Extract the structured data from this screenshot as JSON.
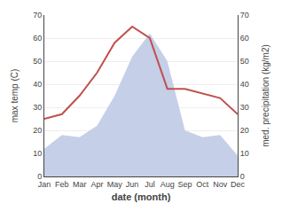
{
  "chart_data": {
    "type": "line",
    "xlabel": "date (month)",
    "ylabel": "max temp (C)",
    "y2label": "med. precipitation (kg/m2)",
    "categories": [
      "Jan",
      "Feb",
      "Mar",
      "Apr",
      "May",
      "Jun",
      "Jul",
      "Aug",
      "Sep",
      "Oct",
      "Nov",
      "Dec"
    ],
    "series": [
      {
        "type": "area",
        "axis": "y2",
        "color": "#c5cfe8",
        "values": [
          12,
          18,
          17,
          22,
          35,
          52,
          62,
          50,
          20,
          17,
          18,
          9
        ]
      },
      {
        "type": "line",
        "color": "#c0504d",
        "values": [
          25,
          27,
          35,
          45,
          58,
          65,
          60,
          38,
          38,
          36,
          34,
          27
        ]
      }
    ],
    "ylim": [
      0,
      70
    ],
    "yticks": [
      0,
      10,
      20,
      30,
      40,
      50,
      60,
      70
    ],
    "y2lim": [
      0,
      70
    ],
    "y2ticks": [
      0,
      10,
      20,
      30,
      40,
      50,
      60,
      70
    ],
    "grid": true
  }
}
